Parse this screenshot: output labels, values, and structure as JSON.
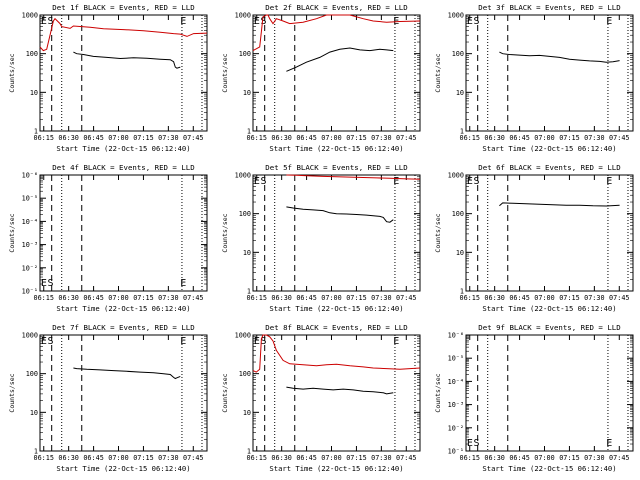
{
  "chart_data": [
    {
      "type": "line",
      "title": "Det 1f BLACK = Events, RED = LLD",
      "xlabel": "Start Time (22-Oct-15 06:12:40)",
      "ylabel": "Counts/sec",
      "yscale": "log",
      "ytick_labels": [
        "1",
        "10",
        "100",
        "1000"
      ],
      "ylim": [
        1,
        1000
      ],
      "xlim": [
        0,
        100
      ],
      "xticks": [
        "06:15",
        "06:30",
        "06:45",
        "07:00",
        "07:15",
        "07:30",
        "07:45"
      ],
      "grid": false,
      "legend": "none",
      "labels": [
        "E",
        "S",
        "E"
      ],
      "series": [
        {
          "color": "#cc0000",
          "x": [
            0,
            2,
            4,
            6,
            8,
            9,
            12,
            13,
            18,
            20,
            30,
            38,
            50,
            62,
            72,
            80,
            84,
            88,
            92,
            100
          ],
          "y": [
            150,
            120,
            130,
            300,
            700,
            800,
            600,
            500,
            450,
            520,
            480,
            440,
            420,
            390,
            360,
            330,
            320,
            280,
            330,
            340
          ]
        },
        {
          "color": "#000000",
          "x": [
            20,
            22,
            26,
            32,
            40,
            48,
            56,
            64,
            72,
            78,
            80,
            81,
            82,
            84
          ],
          "y": [
            110,
            100,
            95,
            85,
            80,
            75,
            78,
            76,
            72,
            70,
            62,
            45,
            42,
            45
          ]
        }
      ]
    },
    {
      "type": "line",
      "title": "Det 2f BLACK = Events, RED = LLD",
      "xlabel": "Start Time (22-Oct-15 06:12:40)",
      "ylabel": "Counts/sec",
      "yscale": "log",
      "ytick_labels": [
        "1",
        "10",
        "100",
        "1000"
      ],
      "ylim": [
        1,
        1000
      ],
      "xlim": [
        0,
        100
      ],
      "xticks": [
        "06:15",
        "06:30",
        "06:45",
        "07:00",
        "07:15",
        "07:30",
        "07:45"
      ],
      "grid": false,
      "legend": "none",
      "labels": [
        "E",
        "S",
        "E"
      ],
      "series": [
        {
          "color": "#cc0000",
          "x": [
            0,
            4,
            6,
            8,
            9,
            10,
            12,
            14,
            18,
            22,
            30,
            38,
            44,
            50,
            58,
            66,
            72,
            80,
            88,
            100
          ],
          "y": [
            120,
            150,
            900,
            1000,
            1000,
            800,
            600,
            800,
            700,
            600,
            650,
            800,
            1200,
            1100,
            1000,
            800,
            700,
            650,
            680,
            700
          ]
        },
        {
          "color": "#000000",
          "x": [
            20,
            22,
            26,
            32,
            40,
            46,
            52,
            58,
            64,
            70,
            76,
            80,
            84
          ],
          "y": [
            35,
            38,
            45,
            60,
            80,
            110,
            130,
            140,
            125,
            120,
            130,
            125,
            120
          ]
        }
      ]
    },
    {
      "type": "line",
      "title": "Det 3f BLACK = Events, RED = LLD",
      "xlabel": "Start Time (22-Oct-15 06:12:40)",
      "ylabel": "Counts/sec",
      "yscale": "log",
      "ytick_labels": [
        "1",
        "10",
        "100",
        "1000"
      ],
      "ylim": [
        1,
        1000
      ],
      "xlim": [
        0,
        100
      ],
      "xticks": [
        "06:15",
        "06:30",
        "06:45",
        "07:00",
        "07:15",
        "07:30",
        "07:45"
      ],
      "grid": false,
      "legend": "none",
      "labels": [
        "E",
        "S",
        "E"
      ],
      "series": [
        {
          "color": "#000000",
          "x": [
            20,
            22,
            26,
            32,
            38,
            44,
            50,
            56,
            62,
            68,
            74,
            80,
            84,
            88,
            92
          ],
          "y": [
            110,
            100,
            95,
            92,
            88,
            90,
            85,
            80,
            72,
            68,
            65,
            63,
            60,
            62,
            66
          ]
        }
      ]
    },
    {
      "type": "line",
      "title": "Det 4f BLACK = Events, RED = LLD",
      "xlabel": "Start Time (22-Oct-15 06:12:40)",
      "ylabel": "Counts/sec",
      "yscale": "log",
      "ytick_labels": [
        "10⁻¹",
        "10⁻²",
        "10⁻³",
        "10⁻⁴",
        "10⁻⁵",
        "10⁻⁶"
      ],
      "ylim": [
        1e-06,
        0.1
      ],
      "xlim": [
        0,
        100
      ],
      "xticks": [
        "06:15",
        "06:30",
        "06:45",
        "07:00",
        "07:15",
        "07:30",
        "07:45"
      ],
      "grid": false,
      "legend": "none",
      "labels": [
        "E",
        "S",
        "E"
      ],
      "series": []
    },
    {
      "type": "line",
      "title": "Det 5f BLACK = Events, RED = LLD",
      "xlabel": "Start Time (22-Oct-15 06:12:40)",
      "ylabel": "Counts/sec",
      "yscale": "log",
      "ytick_labels": [
        "1",
        "10",
        "100",
        "1000"
      ],
      "ylim": [
        1,
        1000
      ],
      "xlim": [
        0,
        100
      ],
      "xticks": [
        "06:15",
        "06:30",
        "06:45",
        "07:00",
        "07:15",
        "07:30",
        "07:45"
      ],
      "grid": false,
      "legend": "none",
      "labels": [
        "E",
        "S",
        "E"
      ],
      "series": [
        {
          "color": "#cc0000",
          "x": [
            20,
            26,
            34,
            42,
            50,
            58,
            66,
            74,
            82,
            90,
            100
          ],
          "y": [
            1000,
            980,
            950,
            920,
            900,
            880,
            860,
            840,
            820,
            800,
            780
          ]
        },
        {
          "color": "#000000",
          "x": [
            20,
            24,
            30,
            36,
            42,
            46,
            50,
            56,
            62,
            68,
            72,
            76,
            78,
            80,
            82,
            84
          ],
          "y": [
            150,
            140,
            130,
            125,
            120,
            105,
            100,
            98,
            95,
            92,
            88,
            85,
            80,
            62,
            60,
            70
          ]
        }
      ]
    },
    {
      "type": "line",
      "title": "Det 6f BLACK = Events, RED = LLD",
      "xlabel": "Start Time (22-Oct-15 06:12:40)",
      "ylabel": "Counts/sec",
      "yscale": "log",
      "ytick_labels": [
        "1",
        "10",
        "100",
        "1000"
      ],
      "ylim": [
        1,
        1000
      ],
      "xlim": [
        0,
        100
      ],
      "xticks": [
        "06:15",
        "06:30",
        "06:45",
        "07:00",
        "07:15",
        "07:30",
        "07:45"
      ],
      "grid": false,
      "legend": "none",
      "labels": [
        "E",
        "S",
        "E"
      ],
      "series": [
        {
          "color": "#000000",
          "x": [
            20,
            22,
            28,
            36,
            44,
            52,
            60,
            68,
            76,
            84,
            92
          ],
          "y": [
            160,
            190,
            185,
            180,
            175,
            170,
            165,
            165,
            160,
            158,
            165
          ]
        }
      ]
    },
    {
      "type": "line",
      "title": "Det 7f BLACK = Events, RED = LLD",
      "xlabel": "Start Time (22-Oct-15 06:12:40)",
      "ylabel": "Counts/sec",
      "yscale": "log",
      "ytick_labels": [
        "1",
        "10",
        "100",
        "1000"
      ],
      "ylim": [
        1,
        1000
      ],
      "xlim": [
        0,
        100
      ],
      "xticks": [
        "06:15",
        "06:30",
        "06:45",
        "07:00",
        "07:15",
        "07:30",
        "07:45"
      ],
      "grid": false,
      "legend": "none",
      "labels": [
        "E",
        "S",
        "E"
      ],
      "series": [
        {
          "color": "#000000",
          "x": [
            20,
            22,
            28,
            36,
            44,
            52,
            60,
            68,
            74,
            78,
            80,
            81,
            82,
            84
          ],
          "y": [
            140,
            135,
            130,
            125,
            120,
            115,
            110,
            105,
            100,
            95,
            80,
            75,
            78,
            85
          ]
        }
      ]
    },
    {
      "type": "line",
      "title": "Det 8f BLACK = Events, RED = LLD",
      "xlabel": "Start Time (22-Oct-15 06:12:40)",
      "ylabel": "Counts/sec",
      "yscale": "log",
      "ytick_labels": [
        "1",
        "10",
        "100",
        "1000"
      ],
      "ylim": [
        1,
        1000
      ],
      "xlim": [
        0,
        100
      ],
      "xticks": [
        "06:15",
        "06:30",
        "06:45",
        "07:00",
        "07:15",
        "07:30",
        "07:45"
      ],
      "grid": false,
      "legend": "none",
      "labels": [
        "E",
        "S",
        "E"
      ],
      "series": [
        {
          "color": "#cc0000",
          "x": [
            0,
            2,
            4,
            5,
            6,
            8,
            10,
            12,
            14,
            18,
            22,
            30,
            38,
            44,
            50,
            58,
            66,
            72,
            80,
            88,
            100
          ],
          "y": [
            120,
            110,
            130,
            800,
            1000,
            1000,
            900,
            700,
            400,
            220,
            180,
            170,
            160,
            170,
            175,
            160,
            150,
            140,
            135,
            130,
            140
          ]
        },
        {
          "color": "#000000",
          "x": [
            20,
            24,
            30,
            36,
            42,
            48,
            54,
            60,
            66,
            72,
            78,
            80,
            84
          ],
          "y": [
            45,
            42,
            40,
            42,
            40,
            38,
            40,
            38,
            35,
            34,
            32,
            30,
            32
          ]
        }
      ]
    },
    {
      "type": "line",
      "title": "Det 9f BLACK = Events, RED = LLD",
      "xlabel": "Start Time (22-Oct-15 06:12:40)",
      "ylabel": "Counts/sec",
      "yscale": "log",
      "ytick_labels": [
        "10⁻¹",
        "10⁻²",
        "10⁻³",
        "10⁻⁴",
        "10⁻⁵",
        "10⁻⁶"
      ],
      "ylim": [
        1e-06,
        0.1
      ],
      "xlim": [
        0,
        100
      ],
      "xticks": [
        "06:15",
        "06:30",
        "06:45",
        "07:00",
        "07:15",
        "07:30",
        "07:45"
      ],
      "grid": false,
      "legend": "none",
      "labels": [
        "E",
        "S",
        "E"
      ],
      "series": []
    }
  ]
}
